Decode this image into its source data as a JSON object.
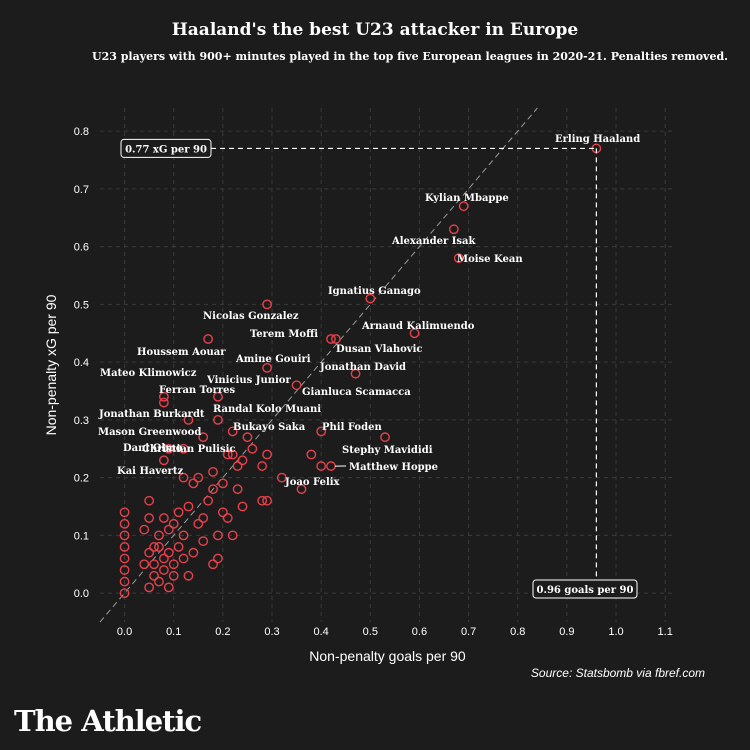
{
  "header": {
    "title": "Haaland's the best U23 attacker in Europe",
    "subtitle": "U23 players with 900+ minutes played in the top five European leagues in 2020-21. Penalties removed."
  },
  "footer": {
    "source": "Source: Statsbomb via fbref.com",
    "brand": "The Athletic"
  },
  "colors": {
    "background": "#1c1c1c",
    "marker": "#e8414b",
    "text": "#ffffff",
    "grid": "#3a3a3a"
  },
  "chart_data": {
    "type": "scatter",
    "xlabel": "Non-penalty goals per 90",
    "ylabel": "Non-penalty xG per 90",
    "xlim": [
      -0.05,
      1.12
    ],
    "ylim": [
      -0.05,
      0.84
    ],
    "xticks": [
      0.0,
      0.1,
      0.2,
      0.3,
      0.4,
      0.5,
      0.6,
      0.7,
      0.8,
      0.9,
      1.0,
      1.1
    ],
    "yticks": [
      0.0,
      0.1,
      0.2,
      0.3,
      0.4,
      0.5,
      0.6,
      0.7,
      0.8
    ],
    "grid": true,
    "reference_line": "y = x",
    "callouts": {
      "xg": "0.77 xG per 90",
      "goals": "0.96 goals per 90",
      "point": [
        0.96,
        0.77
      ]
    },
    "labeled_points": [
      {
        "name": "Erling Haaland",
        "x": 0.96,
        "y": 0.77
      },
      {
        "name": "Kylian Mbappe",
        "x": 0.69,
        "y": 0.67
      },
      {
        "name": "Alexander Isak",
        "x": 0.67,
        "y": 0.63
      },
      {
        "name": "Moise Kean",
        "x": 0.68,
        "y": 0.58
      },
      {
        "name": "Ignatius Ganago",
        "x": 0.5,
        "y": 0.51
      },
      {
        "name": "Nicolas Gonzalez",
        "x": 0.29,
        "y": 0.5
      },
      {
        "name": "Arnaud Kalimuendo",
        "x": 0.59,
        "y": 0.45
      },
      {
        "name": "Terem Moffi",
        "x": 0.42,
        "y": 0.44
      },
      {
        "name": "Dusan Vlahovic",
        "x": 0.43,
        "y": 0.44
      },
      {
        "name": "Houssem Aouar",
        "x": 0.17,
        "y": 0.44
      },
      {
        "name": "Amine Gouiri",
        "x": 0.29,
        "y": 0.39
      },
      {
        "name": "Jonathan David",
        "x": 0.47,
        "y": 0.38
      },
      {
        "name": "Mateo Klimowicz",
        "x": 0.08,
        "y": 0.34
      },
      {
        "name": "Vinicius Junior",
        "x": 0.19,
        "y": 0.34
      },
      {
        "name": "Ferran Torres",
        "x": 0.08,
        "y": 0.33
      },
      {
        "name": "Gianluca Scamacca",
        "x": 0.35,
        "y": 0.36
      },
      {
        "name": "Randal Kolo Muani",
        "x": 0.19,
        "y": 0.3
      },
      {
        "name": "Jonathan Burkardt",
        "x": 0.13,
        "y": 0.3
      },
      {
        "name": "Bukayo Saka",
        "x": 0.22,
        "y": 0.28
      },
      {
        "name": "Phil Foden",
        "x": 0.4,
        "y": 0.28
      },
      {
        "name": "Mason Greenwood",
        "x": 0.16,
        "y": 0.27
      },
      {
        "name": "Stephy Mavididi",
        "x": 0.53,
        "y": 0.27
      },
      {
        "name": "Dani Olmo",
        "x": 0.09,
        "y": 0.25
      },
      {
        "name": "Christian Pulisic",
        "x": 0.12,
        "y": 0.25
      },
      {
        "name": "Kai Havertz",
        "x": 0.08,
        "y": 0.23
      },
      {
        "name": "Matthew Hoppe",
        "x": 0.42,
        "y": 0.22
      },
      {
        "name": "Joao Felix",
        "x": 0.4,
        "y": 0.22
      }
    ],
    "other_points": [
      [
        0,
        0.0
      ],
      [
        0,
        0.02
      ],
      [
        0,
        0.04
      ],
      [
        0,
        0.06
      ],
      [
        0,
        0.08
      ],
      [
        0,
        0.1
      ],
      [
        0,
        0.12
      ],
      [
        0,
        0.14
      ],
      [
        0.05,
        0.01
      ],
      [
        0.06,
        0.03
      ],
      [
        0.04,
        0.05
      ],
      [
        0.05,
        0.07
      ],
      [
        0.06,
        0.08
      ],
      [
        0.04,
        0.11
      ],
      [
        0.05,
        0.13
      ],
      [
        0.05,
        0.16
      ],
      [
        0.07,
        0.1
      ],
      [
        0.08,
        0.06
      ],
      [
        0.07,
        0.02
      ],
      [
        0.08,
        0.04
      ],
      [
        0.09,
        0.01
      ],
      [
        0.09,
        0.07
      ],
      [
        0.1,
        0.03
      ],
      [
        0.1,
        0.05
      ],
      [
        0.11,
        0.08
      ],
      [
        0.1,
        0.12
      ],
      [
        0.08,
        0.13
      ],
      [
        0.12,
        0.06
      ],
      [
        0.12,
        0.1
      ],
      [
        0.13,
        0.15
      ],
      [
        0.14,
        0.07
      ],
      [
        0.14,
        0.19
      ],
      [
        0.15,
        0.12
      ],
      [
        0.15,
        0.2
      ],
      [
        0.16,
        0.09
      ],
      [
        0.17,
        0.16
      ],
      [
        0.18,
        0.05
      ],
      [
        0.18,
        0.18
      ],
      [
        0.19,
        0.06
      ],
      [
        0.19,
        0.1
      ],
      [
        0.18,
        0.21
      ],
      [
        0.2,
        0.14
      ],
      [
        0.2,
        0.19
      ],
      [
        0.21,
        0.24
      ],
      [
        0.22,
        0.1
      ],
      [
        0.23,
        0.18
      ],
      [
        0.23,
        0.22
      ],
      [
        0.24,
        0.15
      ],
      [
        0.24,
        0.23
      ],
      [
        0.25,
        0.27
      ],
      [
        0.26,
        0.25
      ],
      [
        0.28,
        0.16
      ],
      [
        0.29,
        0.16
      ],
      [
        0.28,
        0.22
      ],
      [
        0.29,
        0.24
      ],
      [
        0.32,
        0.2
      ],
      [
        0.36,
        0.18
      ],
      [
        0.38,
        0.24
      ],
      [
        0.12,
        0.2
      ],
      [
        0.06,
        0.05
      ],
      [
        0.07,
        0.08
      ],
      [
        0.09,
        0.11
      ],
      [
        0.11,
        0.14
      ],
      [
        0.13,
        0.03
      ],
      [
        0.16,
        0.13
      ],
      [
        0.21,
        0.13
      ],
      [
        0.22,
        0.24
      ]
    ]
  }
}
